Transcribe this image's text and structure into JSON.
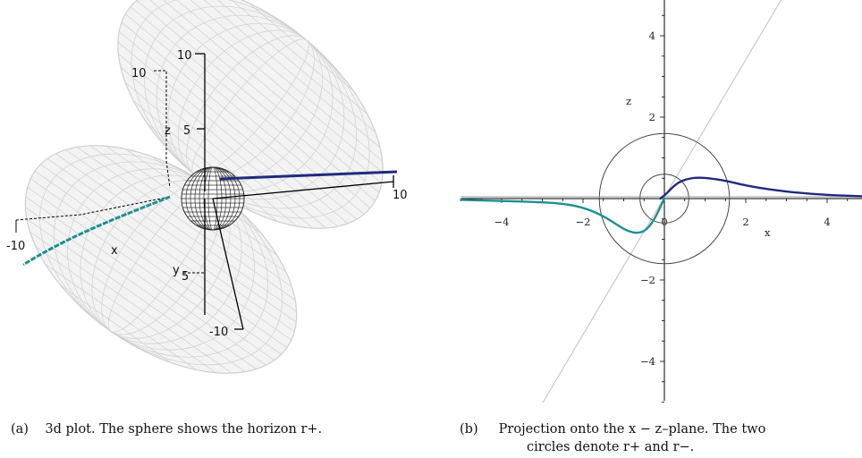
{
  "panel_a": {
    "caption_label": "(a)",
    "caption_text": "3d plot. The sphere shows the horizon r+.",
    "axis_labels": {
      "x": "x",
      "y": "y",
      "z": "z"
    },
    "tick_labels": [
      "10",
      "10",
      "5",
      "-10",
      "5",
      "-10",
      "10"
    ],
    "colors": {
      "mesh": "#cfcfcf",
      "sphere": "#2b2b2b",
      "trajectory_pos": "#1f2a80",
      "trajectory_neg": "#1f8f8f",
      "axes": "#000000"
    }
  },
  "panel_b": {
    "caption_label": "(b)",
    "caption_line1": "Projection onto the x − z–plane. The two",
    "caption_line2": "circles denote r+ and r−.",
    "x_label": "x",
    "z_label": "z",
    "x_ticks": [
      "−4",
      "−2",
      "0",
      "2",
      "4"
    ],
    "z_ticks": [
      "4",
      "2",
      "−2",
      "−4"
    ],
    "chart_data": {
      "type": "line",
      "xlabel": "x",
      "ylabel": "z",
      "xlim": [
        -5,
        5
      ],
      "ylim": [
        -5,
        5
      ],
      "circles": [
        {
          "r": 1.6,
          "color": "#444444"
        },
        {
          "r": 0.6,
          "color": "#444444"
        }
      ],
      "guide_line": {
        "slope": 1.7,
        "color": "#c0c0c0"
      },
      "series": [
        {
          "color": "#1f2a80",
          "x": [
            -0.1,
            0.05,
            0.2,
            0.35,
            0.55,
            0.8,
            1.1,
            1.5,
            2.0,
            2.6,
            3.3,
            4.0,
            5.0
          ],
          "y": [
            0.0,
            0.12,
            0.28,
            0.4,
            0.48,
            0.52,
            0.5,
            0.44,
            0.32,
            0.22,
            0.14,
            0.09,
            0.05
          ]
        },
        {
          "color": "#1f8f8f",
          "x": [
            -5.0,
            -4.0,
            -3.2,
            -2.5,
            -2.0,
            -1.6,
            -1.3,
            -1.0,
            -0.75,
            -0.5,
            -0.3,
            -0.15,
            -0.05,
            0.0
          ],
          "y": [
            -0.03,
            -0.06,
            -0.08,
            -0.12,
            -0.22,
            -0.38,
            -0.55,
            -0.75,
            -0.85,
            -0.82,
            -0.6,
            -0.32,
            -0.1,
            0.0
          ]
        }
      ]
    }
  }
}
